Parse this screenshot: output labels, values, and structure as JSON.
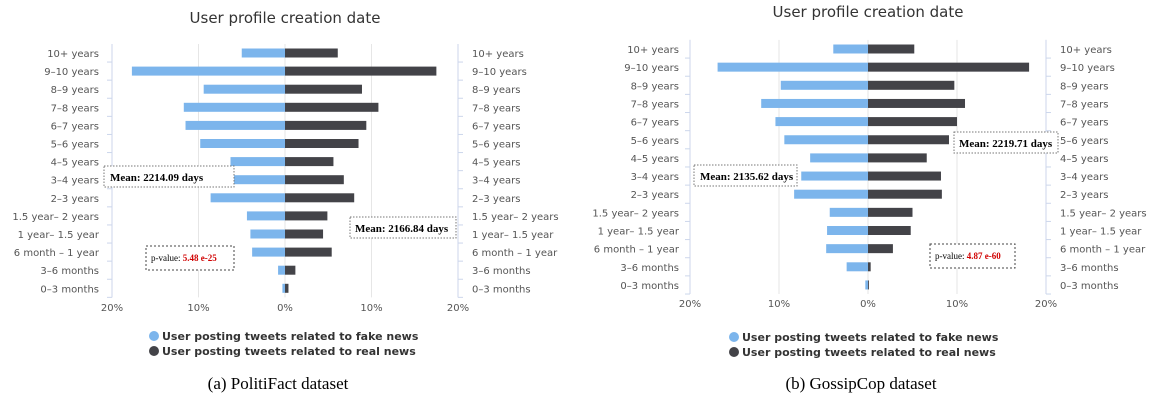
{
  "colors": {
    "fake": "#7cb5ec",
    "real": "#434348",
    "grid": "#e6e6e6",
    "axis": "#ccd6eb",
    "pvalue": "#d00000"
  },
  "legend": {
    "fake": "User posting tweets related to fake news",
    "real": "User posting tweets related to real news"
  },
  "chart_data": [
    {
      "type": "bar",
      "orientation": "horizontal-mirrored",
      "title": "User profile creation date",
      "caption": "(a)  PolitiFact dataset",
      "categories": [
        "10+ years",
        "9–10 years",
        "8–9 years",
        "7–8 years",
        "6–7 years",
        "5–6 years",
        "4–5 years",
        "3–4 years",
        "2–3 years",
        "1.5 year– 2 years",
        "1 year– 1.5 year",
        "6 month – 1 year",
        "3–6 months",
        "0–3 months"
      ],
      "series": [
        {
          "name": "User posting tweets related to fake news",
          "side": "left",
          "values": [
            5,
            17.7,
            9.4,
            11.7,
            11.5,
            9.8,
            6.3,
            7.2,
            8.6,
            4.4,
            4.0,
            3.8,
            0.8,
            0.3
          ]
        },
        {
          "name": "User posting tweets related to real news",
          "side": "right",
          "values": [
            6.1,
            17.5,
            8.9,
            10.8,
            9.4,
            8.5,
            5.6,
            6.8,
            8.0,
            4.9,
            4.4,
            5.4,
            1.2,
            0.4
          ]
        }
      ],
      "xlim": [
        -20,
        20
      ],
      "xtick_labels": [
        "20%",
        "10%",
        "0%",
        "10%",
        "20%"
      ],
      "annotations": {
        "mean_fake": "Mean: 2214.09 days",
        "mean_real": "Mean: 2166.84 days",
        "pvalue_label": "p-value: ",
        "pvalue": "5.48 e-25"
      }
    },
    {
      "type": "bar",
      "orientation": "horizontal-mirrored",
      "title": "User profile creation date",
      "caption": "(b)  GossipCop dataset",
      "categories": [
        "10+ years",
        "9–10 years",
        "8–9 years",
        "7–8 years",
        "6–7 years",
        "5–6 years",
        "4–5 years",
        "3–4 years",
        "2–3 years",
        "1.5 year– 2 years",
        "1 year– 1.5 year",
        "6 month – 1 year",
        "3–6 months",
        "0–3 months"
      ],
      "series": [
        {
          "name": "User posting tweets related to fake news",
          "side": "left",
          "values": [
            3.9,
            16.9,
            9.8,
            12.0,
            10.4,
            9.4,
            6.5,
            7.5,
            8.3,
            4.3,
            4.6,
            4.7,
            2.4,
            0.3
          ]
        },
        {
          "name": "User posting tweets related to real news",
          "side": "right",
          "values": [
            5.2,
            18.1,
            9.7,
            10.9,
            10.0,
            9.1,
            6.6,
            8.2,
            8.3,
            5.0,
            4.8,
            2.8,
            0.3,
            0.1
          ]
        }
      ],
      "xlim": [
        -20,
        20
      ],
      "xtick_labels": [
        "20%",
        "10%",
        "0%",
        "10%",
        "20%"
      ],
      "annotations": {
        "mean_fake": "Mean: 2135.62 days",
        "mean_real": "Mean: 2219.71 days",
        "pvalue_label": "p-value: ",
        "pvalue": "4.87 e-60"
      }
    }
  ]
}
